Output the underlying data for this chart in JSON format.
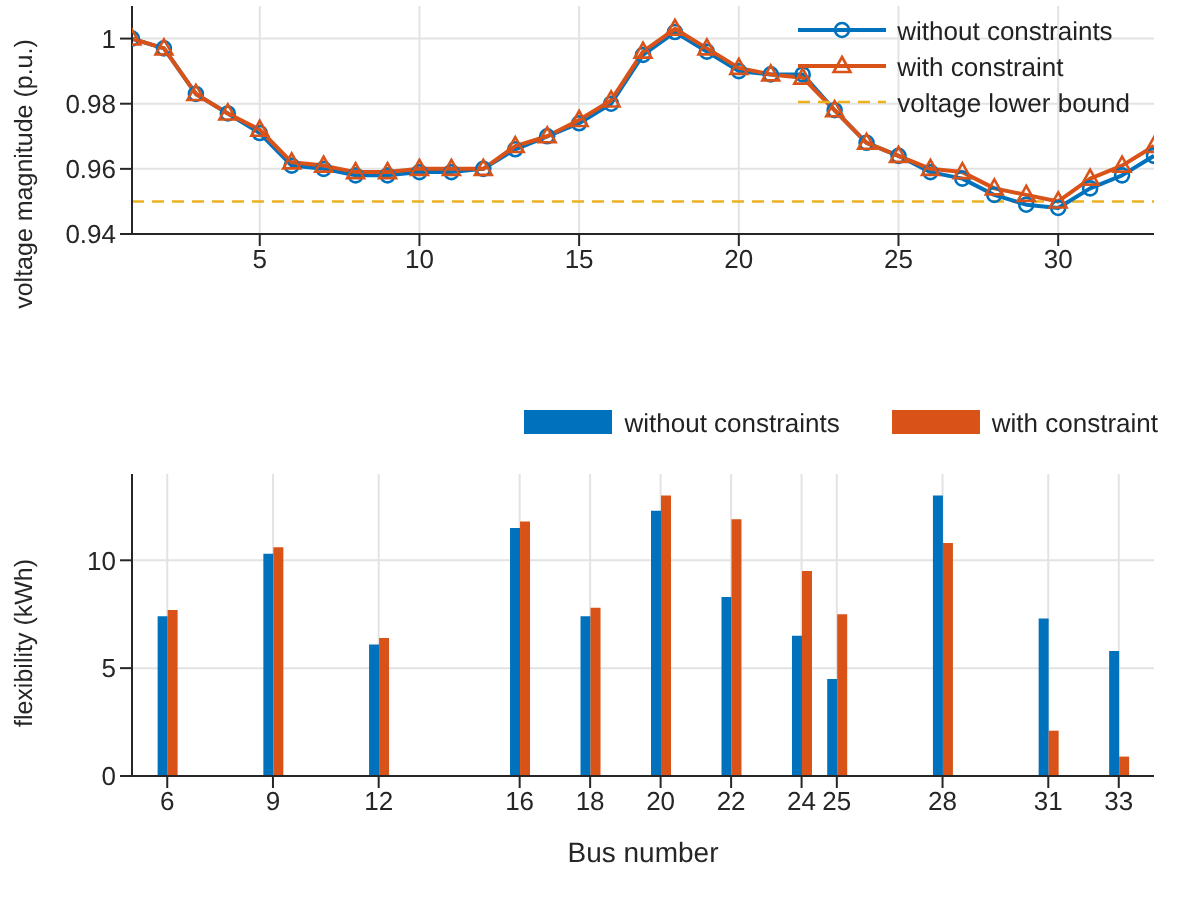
{
  "chart_data": [
    {
      "type": "line",
      "ylabel": "voltage magnitude (p.u.)",
      "x": [
        1,
        2,
        3,
        4,
        5,
        6,
        7,
        8,
        9,
        10,
        11,
        12,
        13,
        14,
        15,
        16,
        17,
        18,
        19,
        20,
        21,
        22,
        23,
        24,
        25,
        26,
        27,
        28,
        29,
        30,
        31,
        32,
        33
      ],
      "xlim": [
        1,
        33
      ],
      "xticks": [
        5,
        10,
        15,
        20,
        25,
        30
      ],
      "ylim": [
        0.94,
        1.01
      ],
      "yticks": [
        0.94,
        0.96,
        0.98,
        1
      ],
      "grid": true,
      "legend": "top right",
      "series": [
        {
          "name": "without constraints",
          "color": "#0072bd",
          "marker": "circle",
          "values": [
            1.0,
            0.997,
            0.983,
            0.977,
            0.971,
            0.961,
            0.96,
            0.958,
            0.958,
            0.959,
            0.959,
            0.96,
            0.966,
            0.97,
            0.974,
            0.98,
            0.995,
            1.002,
            0.996,
            0.99,
            0.989,
            0.989,
            0.978,
            0.968,
            0.964,
            0.959,
            0.957,
            0.952,
            0.949,
            0.948,
            0.954,
            0.958,
            0.964
          ]
        },
        {
          "name": "with constraint",
          "color": "#d95319",
          "marker": "triangle",
          "values": [
            1.0,
            0.997,
            0.983,
            0.977,
            0.972,
            0.962,
            0.961,
            0.959,
            0.959,
            0.96,
            0.96,
            0.96,
            0.967,
            0.97,
            0.975,
            0.981,
            0.996,
            1.003,
            0.997,
            0.991,
            0.989,
            0.988,
            0.978,
            0.968,
            0.964,
            0.96,
            0.959,
            0.954,
            0.952,
            0.95,
            0.957,
            0.961,
            0.967
          ]
        }
      ],
      "ref_lines": [
        {
          "axis": "y",
          "value": 0.95,
          "label": "voltage lower bound",
          "color": "#edb120",
          "line_style": "dashed"
        }
      ]
    },
    {
      "type": "bar",
      "xlabel": "Bus number",
      "ylabel": "flexibility (kWh)",
      "x": [
        6,
        9,
        12,
        16,
        18,
        20,
        22,
        24,
        25,
        28,
        31,
        33
      ],
      "xlim": [
        5,
        34
      ],
      "xticks": [
        6,
        9,
        12,
        16,
        18,
        20,
        22,
        24,
        25,
        28,
        31,
        33
      ],
      "ylim": [
        0,
        14
      ],
      "yticks": [
        0,
        5,
        10
      ],
      "grid": true,
      "legend": "top",
      "series": [
        {
          "name": "without constraints",
          "color": "#0072bd",
          "values": [
            7.4,
            10.3,
            6.1,
            11.5,
            7.4,
            12.3,
            8.3,
            6.5,
            4.5,
            13.0,
            7.3,
            5.8
          ]
        },
        {
          "name": "with constraint",
          "color": "#d95319",
          "values": [
            7.7,
            10.6,
            6.4,
            11.8,
            7.8,
            13.0,
            11.9,
            9.5,
            7.5,
            10.8,
            2.1,
            0.9
          ]
        }
      ]
    }
  ]
}
